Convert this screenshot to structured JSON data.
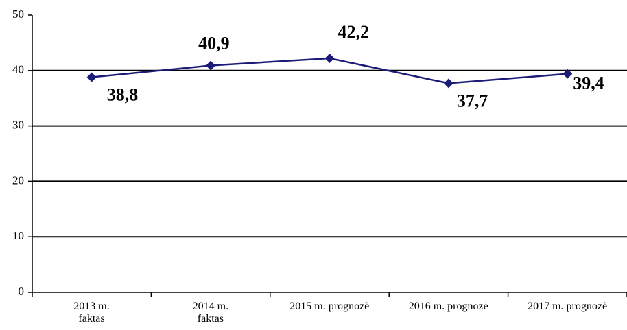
{
  "chart_data": {
    "type": "line",
    "categories": [
      "2013 m.\nfaktas",
      "2014 m.\nfaktas",
      "2015 m. prognozė",
      "2016 m. prognozė",
      "2017 m. prognozė"
    ],
    "series": [
      {
        "name": null,
        "color": "#1c1c78",
        "values": [
          38.8,
          40.9,
          42.2,
          37.7,
          39.4
        ],
        "value_labels": [
          "38,8",
          "40,9",
          "42,2",
          "37,7",
          "39,4"
        ]
      }
    ],
    "ylim": [
      0,
      50
    ],
    "yticks": [
      0,
      10,
      20,
      30,
      40,
      50
    ],
    "grid": true
  }
}
